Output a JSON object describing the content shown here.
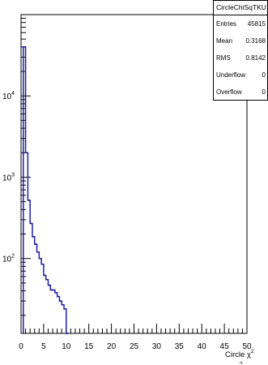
{
  "chart_data": {
    "type": "histogram",
    "title": "",
    "xlabel": "Circle χ",
    "xlabel_superscript": "2",
    "xlabel_subscript": "rϕ",
    "ylabel": "",
    "xlim": [
      0,
      50
    ],
    "ylim": [
      12,
      100000
    ],
    "y_log_scale": true,
    "grid": false,
    "bin_width": 0.5,
    "line_color": "#1f1f9f",
    "x_ticks": [
      0,
      5,
      10,
      15,
      20,
      25,
      30,
      35,
      40,
      45,
      50
    ],
    "y_tick_labels": [
      {
        "value": 100,
        "base": "10",
        "exp": "2"
      },
      {
        "value": 1000,
        "base": "10",
        "exp": "3"
      },
      {
        "value": 10000,
        "base": "10",
        "exp": "4"
      }
    ],
    "bins": [
      {
        "x": 0.5,
        "count": 40000
      },
      {
        "x": 1.0,
        "count": 2000
      },
      {
        "x": 1.5,
        "count": 520
      },
      {
        "x": 2.0,
        "count": 270
      },
      {
        "x": 2.5,
        "count": 185
      },
      {
        "x": 3.0,
        "count": 150
      },
      {
        "x": 3.5,
        "count": 120
      },
      {
        "x": 4.0,
        "count": 100
      },
      {
        "x": 4.5,
        "count": 85
      },
      {
        "x": 5.0,
        "count": 62
      },
      {
        "x": 5.5,
        "count": 55
      },
      {
        "x": 6.0,
        "count": 47
      },
      {
        "x": 6.5,
        "count": 41
      },
      {
        "x": 7.0,
        "count": 41
      },
      {
        "x": 7.5,
        "count": 38
      },
      {
        "x": 8.0,
        "count": 34
      },
      {
        "x": 8.5,
        "count": 30
      },
      {
        "x": 9.0,
        "count": 27
      },
      {
        "x": 9.5,
        "count": 24
      },
      {
        "x": 10.0,
        "count": 12
      }
    ]
  },
  "stats": {
    "name": "CircleChiSqTKU",
    "rows": [
      {
        "label": "Entries",
        "value": "45815"
      },
      {
        "label": "Mean",
        "value": "0.3168"
      },
      {
        "label": "RMS",
        "value": "0.8142"
      },
      {
        "label": "Underflow",
        "value": "0"
      },
      {
        "label": "Overflow",
        "value": "0"
      }
    ]
  }
}
